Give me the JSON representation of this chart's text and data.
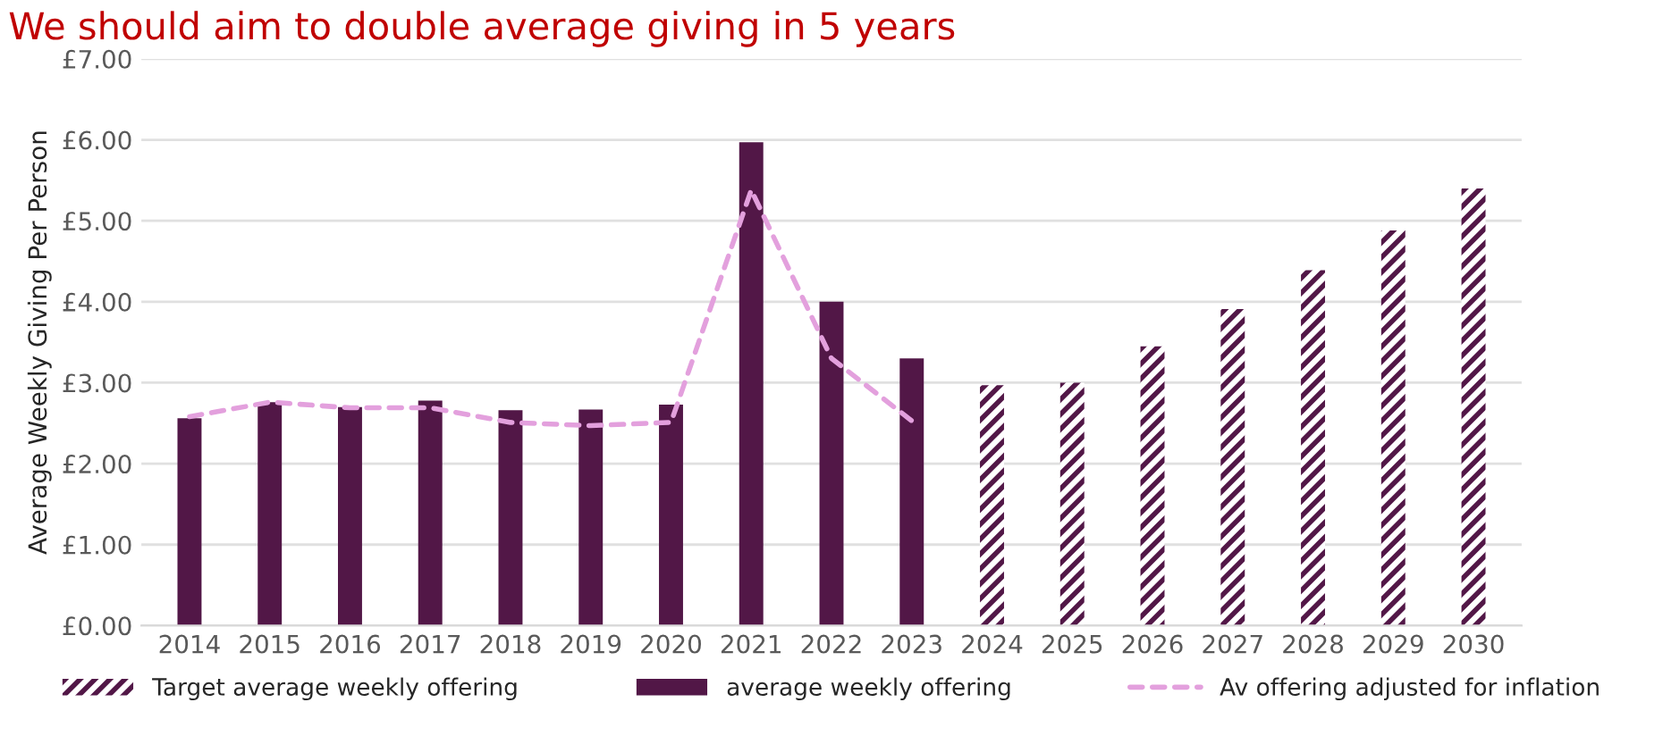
{
  "chart_data": {
    "type": "bar",
    "title": "We should aim to double average giving in 5 years",
    "categories": [
      "2014",
      "2015",
      "2016",
      "2017",
      "2018",
      "2019",
      "2020",
      "2021",
      "2022",
      "2023",
      "2024",
      "2025",
      "2026",
      "2027",
      "2028",
      "2029",
      "2030"
    ],
    "ylabel": "Average Weekly Giving Per Person",
    "series": [
      {
        "name": "Target average weekly offering",
        "color": "#521747",
        "values": [
          null,
          null,
          null,
          null,
          null,
          null,
          null,
          null,
          null,
          null,
          2.97,
          3.0,
          3.45,
          3.91,
          4.39,
          4.88,
          5.4
        ]
      },
      {
        "name": "average weekly offering",
        "color": "#521747",
        "values": [
          2.56,
          2.76,
          2.7,
          2.78,
          2.66,
          2.67,
          2.73,
          5.97,
          4.0,
          3.3,
          null,
          null,
          null,
          null,
          null,
          null,
          null
        ]
      },
      {
        "name": "Av offering adjusted for inflation",
        "type": "line",
        "line_style": "dashed",
        "color": "#e3a0dd",
        "values": [
          2.58,
          2.76,
          2.69,
          2.69,
          2.51,
          2.47,
          2.51,
          5.38,
          3.3,
          2.53,
          null,
          null,
          null,
          null,
          null,
          null,
          null
        ]
      }
    ],
    "ylim": [
      0,
      7
    ],
    "yticks": [
      {
        "value": 0,
        "label": "£0.00"
      },
      {
        "value": 1,
        "label": "£1.00"
      },
      {
        "value": 2,
        "label": "£2.00"
      },
      {
        "value": 3,
        "label": "£3.00"
      },
      {
        "value": 4,
        "label": "£4.00"
      },
      {
        "value": 5,
        "label": "£5.00"
      },
      {
        "value": 6,
        "label": "£6.00"
      },
      {
        "value": 7,
        "label": "£7.00"
      }
    ],
    "grid": "y",
    "legend": "bottom",
    "marker": "none"
  }
}
